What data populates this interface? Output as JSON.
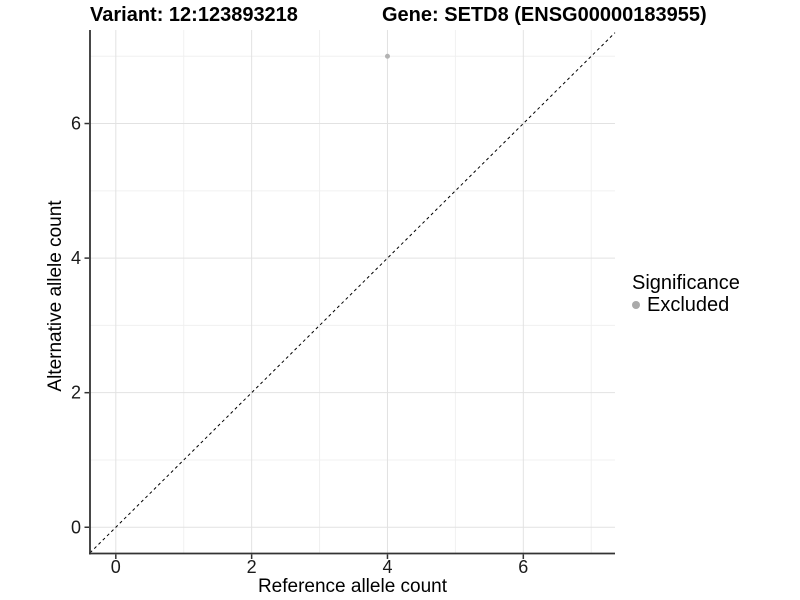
{
  "header": {
    "variant_title": "Variant: 12:123893218",
    "gene_title": "Gene: SETD8 (ENSG00000183955)"
  },
  "chart_data": {
    "type": "scatter",
    "title": "Variant: 12:123893218   Gene: SETD8 (ENSG00000183955)",
    "xlabel": "Reference allele count",
    "ylabel": "Alternative allele count",
    "xlim": [
      -0.38,
      7.35
    ],
    "ylim": [
      -0.39,
      7.39
    ],
    "xticks": [
      0,
      2,
      4,
      6
    ],
    "yticks": [
      0,
      2,
      4,
      6
    ],
    "xtick_labels": [
      "0",
      "2",
      "4",
      "6"
    ],
    "ytick_labels": [
      "0",
      "2",
      "4",
      "6"
    ],
    "grid": "on",
    "grid_major": [
      0,
      2,
      4,
      6
    ],
    "grid_minor": [
      1,
      3,
      5,
      7
    ],
    "legend_position": "right",
    "series": [
      {
        "name": "Excluded",
        "color": "#b3b3b3",
        "point_radius": 2.5,
        "points": [
          {
            "x": 4,
            "y": 7
          }
        ]
      }
    ],
    "reference_line": {
      "type": "identity",
      "slope": 1,
      "intercept": 0,
      "style": "dashed",
      "color": "#000000"
    }
  },
  "axes": {
    "x_title": "Reference allele count",
    "y_title": "Alternative allele count"
  },
  "legend": {
    "title": "Significance",
    "entries": [
      {
        "label": "Excluded",
        "dot_color": "#aaaaaa"
      }
    ]
  },
  "colors": {
    "background": "#ffffff",
    "grid_major": "#e2e2e2",
    "grid_minor": "#f0f0f0",
    "axis_line": "#333333",
    "tick_mark": "#333333",
    "tick_label": "#1a1a1a",
    "text": "#000000",
    "point": "#b3b3b3",
    "identity_line": "#000000"
  }
}
